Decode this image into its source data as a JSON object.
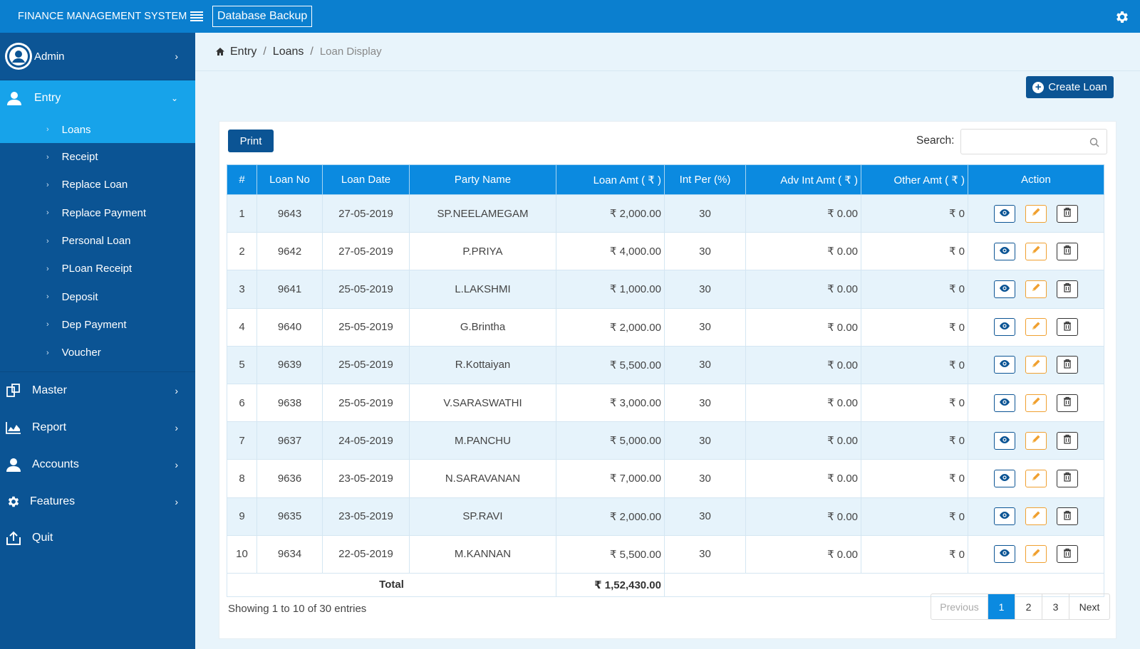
{
  "topbar": {
    "brand": "FINANCE MANAGEMENT SYSTEM",
    "db_backup": "Database Backup"
  },
  "sidebar": {
    "user": "Admin",
    "entry": "Entry",
    "entry_items": [
      "Loans",
      "Receipt",
      "Replace Loan",
      "Replace Payment",
      "Personal Loan",
      "PLoan Receipt",
      "Deposit",
      "Dep Payment",
      "Voucher"
    ],
    "main_items": [
      {
        "label": "Master",
        "icon": "master-icon",
        "chevron": true
      },
      {
        "label": "Report",
        "icon": "report-chart-icon",
        "chevron": true
      },
      {
        "label": "Accounts",
        "icon": "user-icon",
        "chevron": true
      },
      {
        "label": "Features",
        "icon": "gear-icon",
        "chevron": true
      },
      {
        "label": "Quit",
        "icon": "logout-icon",
        "chevron": false
      }
    ]
  },
  "breadcrumb": {
    "home": "Entry",
    "mid": "Loans",
    "current": "Loan Display"
  },
  "create_button": "Create Loan",
  "print_button": "Print",
  "search": {
    "label": "Search:",
    "value": "",
    "placeholder": ""
  },
  "table": {
    "headers": [
      "#",
      "Loan No",
      "Loan Date",
      "Party Name",
      "Loan Amt ( ₹ )",
      "Int Per (%)",
      "Adv Int Amt ( ₹ )",
      "Other Amt ( ₹ )",
      "Action"
    ],
    "rows": [
      {
        "n": "1",
        "loan_no": "9643",
        "date": "27-05-2019",
        "party": "SP.NEELAMEGAM",
        "amt": "₹ 2,000.00",
        "int": "30",
        "adv": "₹ 0.00",
        "other": "₹ 0"
      },
      {
        "n": "2",
        "loan_no": "9642",
        "date": "27-05-2019",
        "party": "P.PRIYA",
        "amt": "₹ 4,000.00",
        "int": "30",
        "adv": "₹ 0.00",
        "other": "₹ 0"
      },
      {
        "n": "3",
        "loan_no": "9641",
        "date": "25-05-2019",
        "party": "L.LAKSHMI",
        "amt": "₹ 1,000.00",
        "int": "30",
        "adv": "₹ 0.00",
        "other": "₹ 0"
      },
      {
        "n": "4",
        "loan_no": "9640",
        "date": "25-05-2019",
        "party": "G.Brintha",
        "amt": "₹ 2,000.00",
        "int": "30",
        "adv": "₹ 0.00",
        "other": "₹ 0"
      },
      {
        "n": "5",
        "loan_no": "9639",
        "date": "25-05-2019",
        "party": "R.Kottaiyan",
        "amt": "₹ 5,500.00",
        "int": "30",
        "adv": "₹ 0.00",
        "other": "₹ 0"
      },
      {
        "n": "6",
        "loan_no": "9638",
        "date": "25-05-2019",
        "party": "V.SARASWATHI",
        "amt": "₹ 3,000.00",
        "int": "30",
        "adv": "₹ 0.00",
        "other": "₹ 0"
      },
      {
        "n": "7",
        "loan_no": "9637",
        "date": "24-05-2019",
        "party": "M.PANCHU",
        "amt": "₹ 5,000.00",
        "int": "30",
        "adv": "₹ 0.00",
        "other": "₹ 0"
      },
      {
        "n": "8",
        "loan_no": "9636",
        "date": "23-05-2019",
        "party": "N.SARAVANAN",
        "amt": "₹ 7,000.00",
        "int": "30",
        "adv": "₹ 0.00",
        "other": "₹ 0"
      },
      {
        "n": "9",
        "loan_no": "9635",
        "date": "23-05-2019",
        "party": "SP.RAVI",
        "amt": "₹ 2,000.00",
        "int": "30",
        "adv": "₹ 0.00",
        "other": "₹ 0"
      },
      {
        "n": "10",
        "loan_no": "9634",
        "date": "22-05-2019",
        "party": "M.KANNAN",
        "amt": "₹ 5,500.00",
        "int": "30",
        "adv": "₹ 0.00",
        "other": "₹ 0"
      }
    ],
    "total_label": "Total",
    "total_value": "₹ 1,52,430.00"
  },
  "footer": {
    "showing": "Showing 1 to 10 of 30 entries",
    "previous": "Previous",
    "pages": [
      "1",
      "2",
      "3"
    ],
    "active_page": "1",
    "next": "Next"
  },
  "colors": {
    "topbar": "#0b7fcf",
    "sidebar": "#0b5494",
    "active": "#17a3ea",
    "table_header": "#0b8ae0"
  }
}
